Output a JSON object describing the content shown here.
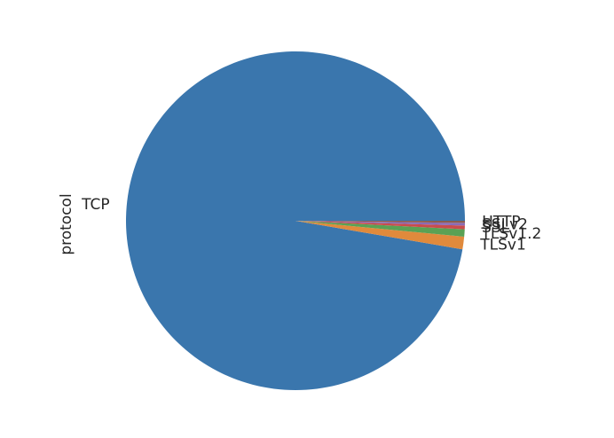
{
  "chart_data": {
    "type": "pie",
    "title": "",
    "ylabel": "protocol",
    "start_angle_deg": 0,
    "counterclockwise": true,
    "labels": [
      "TCP",
      "TLSv1",
      "TLSv1.2",
      "SSL",
      "SSLv2",
      "HTTP"
    ],
    "values": [
      97.3,
      1.2,
      0.7,
      0.35,
      0.25,
      0.2
    ],
    "colors": [
      "#3a76ad",
      "#e08a3c",
      "#5aa154",
      "#c94c4c",
      "#8a6bb5",
      "#8b5d4f"
    ]
  }
}
